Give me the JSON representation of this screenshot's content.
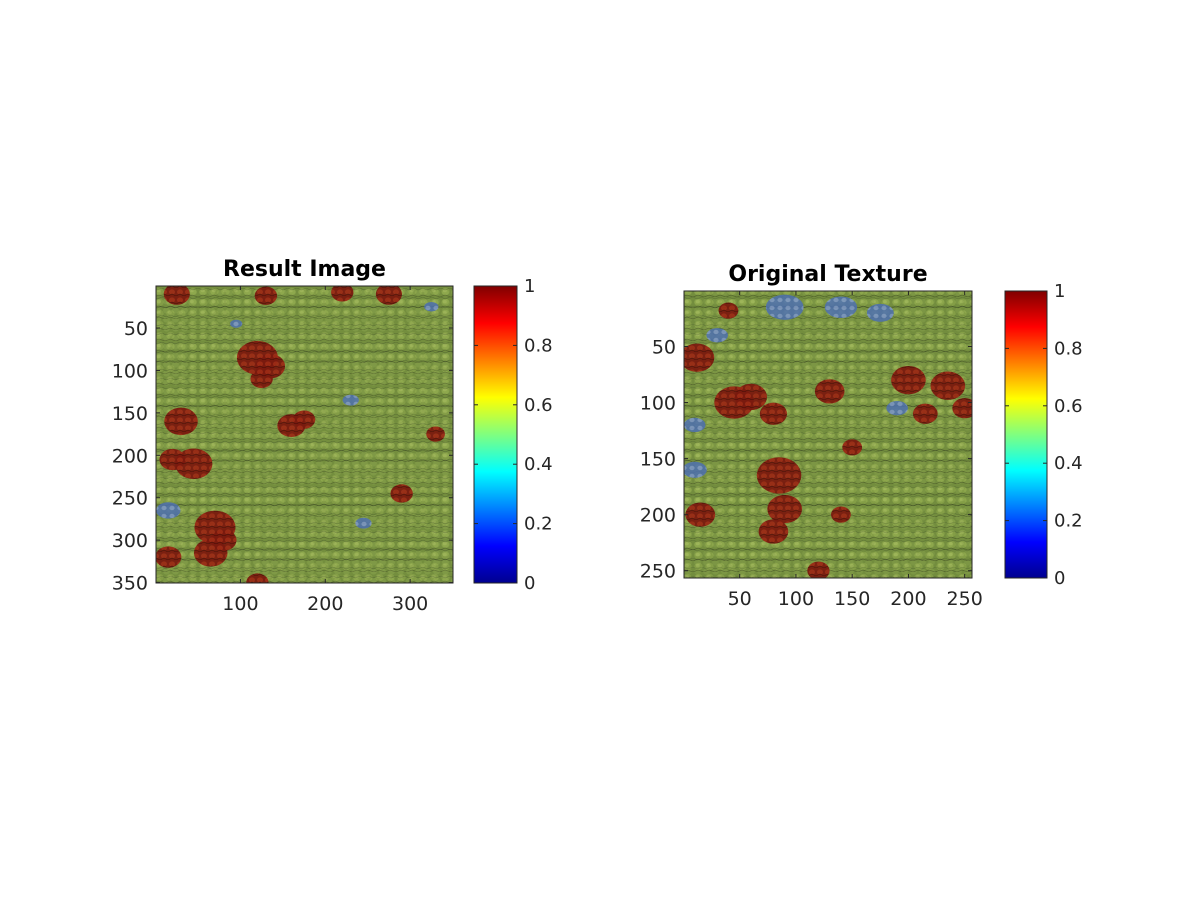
{
  "chart_data": [
    {
      "type": "heatmap",
      "title": "Result Image",
      "xlabel": "",
      "ylabel": "",
      "xlim": [
        0.5,
        350.5
      ],
      "ylim": [
        0.5,
        350.5
      ],
      "y_reversed": true,
      "xticks": [
        100,
        200,
        300
      ],
      "yticks": [
        50,
        100,
        150,
        200,
        250,
        300,
        350
      ],
      "colorbar": {
        "range": [
          0,
          1
        ],
        "ticks": [
          0,
          0.2,
          0.4,
          0.6,
          0.8,
          1
        ],
        "colormap": "jet"
      },
      "texture_patches": [
        {
          "x": 120,
          "y": 85,
          "r": 22
        },
        {
          "x": 135,
          "y": 95,
          "r": 16
        },
        {
          "x": 125,
          "y": 110,
          "r": 12
        },
        {
          "x": 30,
          "y": 160,
          "r": 18
        },
        {
          "x": 45,
          "y": 210,
          "r": 20
        },
        {
          "x": 20,
          "y": 205,
          "r": 14
        },
        {
          "x": 160,
          "y": 165,
          "r": 15
        },
        {
          "x": 175,
          "y": 158,
          "r": 12
        },
        {
          "x": 70,
          "y": 285,
          "r": 22
        },
        {
          "x": 65,
          "y": 315,
          "r": 18
        },
        {
          "x": 80,
          "y": 300,
          "r": 14
        },
        {
          "x": 25,
          "y": 10,
          "r": 14
        },
        {
          "x": 130,
          "y": 12,
          "r": 12
        },
        {
          "x": 220,
          "y": 8,
          "r": 12
        },
        {
          "x": 275,
          "y": 10,
          "r": 14
        },
        {
          "x": 290,
          "y": 245,
          "r": 12
        },
        {
          "x": 330,
          "y": 175,
          "r": 10
        },
        {
          "x": 15,
          "y": 320,
          "r": 14
        },
        {
          "x": 120,
          "y": 350,
          "r": 12
        }
      ],
      "blue_patches": [
        {
          "x": 15,
          "y": 265,
          "r": 12
        },
        {
          "x": 230,
          "y": 135,
          "r": 8
        },
        {
          "x": 95,
          "y": 45,
          "r": 6
        },
        {
          "x": 325,
          "y": 25,
          "r": 7
        },
        {
          "x": 245,
          "y": 280,
          "r": 8
        }
      ]
    },
    {
      "type": "heatmap",
      "title": "Original Texture",
      "xlabel": "",
      "ylabel": "",
      "xlim": [
        0.5,
        256.5
      ],
      "ylim": [
        0.5,
        256.5
      ],
      "y_reversed": true,
      "xticks": [
        50,
        100,
        150,
        200,
        250
      ],
      "yticks": [
        50,
        100,
        150,
        200,
        250
      ],
      "colorbar": {
        "range": [
          0,
          1
        ],
        "ticks": [
          0,
          0.2,
          0.4,
          0.6,
          0.8,
          1
        ],
        "colormap": "jet"
      },
      "texture_patches": [
        {
          "x": 12,
          "y": 60,
          "r": 14
        },
        {
          "x": 45,
          "y": 100,
          "r": 16
        },
        {
          "x": 60,
          "y": 95,
          "r": 13
        },
        {
          "x": 80,
          "y": 110,
          "r": 11
        },
        {
          "x": 130,
          "y": 90,
          "r": 12
        },
        {
          "x": 200,
          "y": 80,
          "r": 14
        },
        {
          "x": 235,
          "y": 85,
          "r": 14
        },
        {
          "x": 250,
          "y": 105,
          "r": 10
        },
        {
          "x": 215,
          "y": 110,
          "r": 10
        },
        {
          "x": 85,
          "y": 165,
          "r": 18
        },
        {
          "x": 90,
          "y": 195,
          "r": 14
        },
        {
          "x": 80,
          "y": 215,
          "r": 12
        },
        {
          "x": 15,
          "y": 200,
          "r": 12
        },
        {
          "x": 150,
          "y": 140,
          "r": 8
        },
        {
          "x": 140,
          "y": 200,
          "r": 8
        },
        {
          "x": 40,
          "y": 18,
          "r": 8
        },
        {
          "x": 120,
          "y": 250,
          "r": 9
        }
      ],
      "blue_patches": [
        {
          "x": 90,
          "y": 15,
          "r": 14
        },
        {
          "x": 140,
          "y": 15,
          "r": 12
        },
        {
          "x": 175,
          "y": 20,
          "r": 10
        },
        {
          "x": 30,
          "y": 40,
          "r": 8
        },
        {
          "x": 190,
          "y": 105,
          "r": 8
        },
        {
          "x": 10,
          "y": 120,
          "r": 8
        },
        {
          "x": 10,
          "y": 160,
          "r": 9
        }
      ]
    }
  ]
}
